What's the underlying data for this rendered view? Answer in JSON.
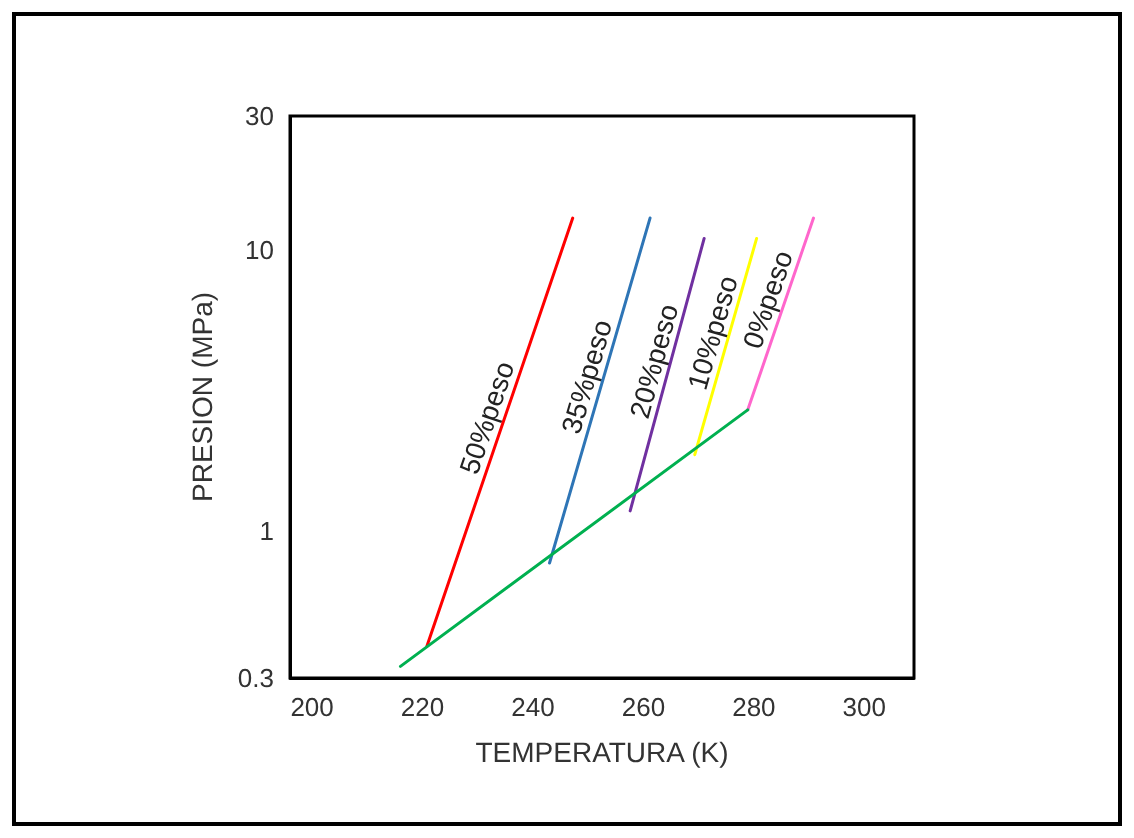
{
  "chart_data": {
    "type": "line",
    "xlabel": "TEMPERATURA (K)",
    "ylabel": "PRESION (MPa)",
    "log": "y",
    "xlim": [
      196,
      309
    ],
    "xticks": [
      200,
      220,
      240,
      260,
      280,
      300
    ],
    "ylim": [
      0.3,
      30
    ],
    "yticks": [
      0.3,
      1,
      10,
      30
    ],
    "grid": false,
    "legend": false,
    "marker": "none",
    "line_style": "solid",
    "series": [
      {
        "name": "50%peso",
        "color": "#ff0000",
        "x": [
          220.8,
          247.2
        ],
        "values": [
          0.39,
          13
        ]
      },
      {
        "name": "35%peso",
        "color": "#2e75b6",
        "x": [
          243,
          261.2
        ],
        "values": [
          0.77,
          13
        ]
      },
      {
        "name": "20%peso",
        "color": "#7030a0",
        "x": [
          257.6,
          271
        ],
        "values": [
          1.18,
          11
        ]
      },
      {
        "name": "10%peso",
        "color": "#ffff00",
        "x": [
          269.3,
          280.5
        ],
        "values": [
          1.87,
          11
        ]
      },
      {
        "name": "0%peso",
        "color": "#ff66cc",
        "x": [
          278.9,
          290.8
        ],
        "values": [
          2.7,
          13
        ]
      },
      {
        "color": "#00b050",
        "x": [
          216,
          278.9
        ],
        "values": [
          0.33,
          2.7
        ]
      }
    ]
  }
}
